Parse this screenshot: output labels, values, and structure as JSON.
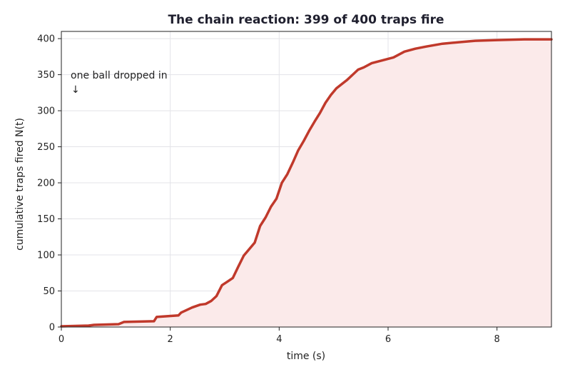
{
  "chart_data": {
    "type": "area",
    "title": "The chain reaction: 399 of 400 traps fire",
    "xlabel": "time  (s)",
    "ylabel": "cumulative traps fired  N(t)",
    "xlim": [
      0,
      9.0
    ],
    "ylim": [
      0,
      410
    ],
    "xticks": [
      0,
      2,
      4,
      6,
      8
    ],
    "yticks": [
      0,
      50,
      100,
      150,
      200,
      250,
      300,
      350,
      400
    ],
    "grid": true,
    "annotation": {
      "text": "one ball dropped in",
      "arrow": "↓"
    },
    "colors": {
      "line": "#c0392b",
      "fill": "#fbeaea",
      "grid": "#e3e3e8",
      "axis": "#222222"
    },
    "series": [
      {
        "x": [
          0,
          0.5,
          0.6,
          1.05,
          1.15,
          1.7,
          1.75,
          2.15,
          2.2,
          2.4,
          2.55,
          2.65,
          2.75,
          2.85,
          2.95,
          3.05,
          3.15,
          3.25,
          3.35,
          3.45,
          3.55,
          3.65,
          3.75,
          3.85,
          3.95,
          4.05,
          4.15,
          4.25,
          4.35,
          4.45,
          4.55,
          4.65,
          4.75,
          4.85,
          4.95,
          5.05,
          5.15,
          5.25,
          5.35,
          5.45,
          5.55,
          5.7,
          5.9,
          6.1,
          6.3,
          6.5,
          6.7,
          7.0,
          7.3,
          7.6,
          8.0,
          8.5,
          9.0
        ],
        "values": [
          1,
          2,
          3,
          4,
          7,
          8,
          14,
          16,
          20,
          27,
          31,
          32,
          36,
          43,
          58,
          63,
          68,
          84,
          99,
          108,
          117,
          140,
          152,
          167,
          178,
          200,
          212,
          228,
          245,
          258,
          272,
          285,
          297,
          311,
          322,
          331,
          337,
          343,
          350,
          357,
          360,
          366,
          370,
          374,
          382,
          386,
          389,
          393,
          395,
          397,
          398,
          399,
          399
        ]
      }
    ]
  }
}
